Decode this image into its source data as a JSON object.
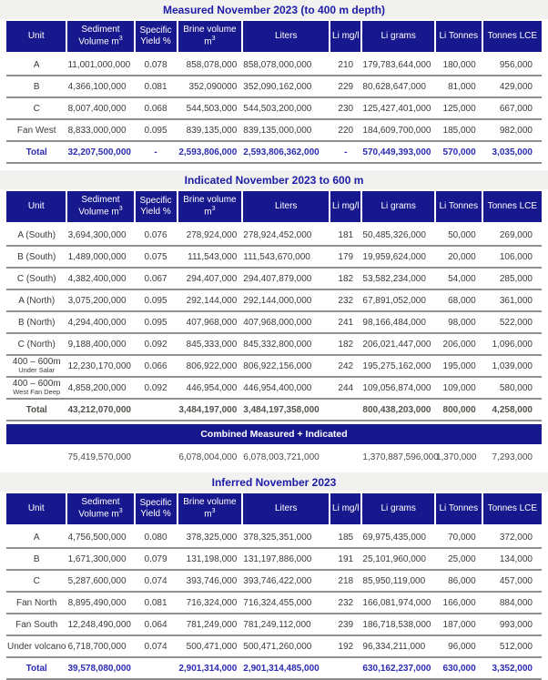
{
  "colors": {
    "header_navy": "#18188E",
    "title_band_bg": "#F1F1EF",
    "title_text": "#1C1CA6",
    "total_blue_text": "#2B2BB2",
    "total_gray_text": "#55524C",
    "data_text": "#3A3A3A",
    "row_divider": "#8F8F8F"
  },
  "column_headers": {
    "unit": "Unit",
    "sediment_line1": "Sediment",
    "sediment_line2": "Volume m",
    "sediment_sup": "3",
    "specific_line1": "Specific",
    "specific_line2": "Yield %",
    "brine_line1": "Brine volume",
    "brine_line2": "m",
    "brine_sup": "3",
    "liters": "Liters",
    "li_mgl": "Li mg/l",
    "li_grams": "Li grams",
    "li_tonnes": "Li Tonnes",
    "tonnes_lce": "Tonnes LCE"
  },
  "tables": [
    {
      "id": "measured",
      "title": "Measured November 2023 (to 400 m depth)",
      "rows": [
        {
          "style": "data",
          "cells": [
            "A",
            "11,001,000,000",
            "0.078",
            "858,078,000",
            "858,078,000,000",
            "210",
            "179,783,644,000",
            "180,000",
            "956,000"
          ]
        },
        {
          "style": "data",
          "cells": [
            "B",
            "4,366,100,000",
            "0.081",
            "352,090000",
            "352,090,162,000",
            "229",
            "80,628,647,000",
            "81,000",
            "429,000"
          ]
        },
        {
          "style": "data",
          "cells": [
            "C",
            "8,007,400,000",
            "0.068",
            "544,503,000",
            "544,503,200,000",
            "230",
            "125,427,401,000",
            "125,000",
            "667,000"
          ]
        },
        {
          "style": "data",
          "cells": [
            "Fan West",
            "8,833,000,000",
            "0.095",
            "839,135,000",
            "839,135,000,000",
            "220",
            "184,609,700,000",
            "185,000",
            "982,000"
          ]
        },
        {
          "style": "total-blue",
          "cells": [
            "Total",
            "32,207,500,000",
            "-",
            "2,593,806,000",
            "2,593,806,362,000",
            "-",
            "570,449,393,000",
            "570,000",
            "3,035,000"
          ]
        }
      ]
    },
    {
      "id": "indicated",
      "title": "Indicated November 2023 to 600 m",
      "rows": [
        {
          "style": "data",
          "cells": [
            "A (South)",
            "3,694,300,000",
            "0.076",
            "278,924,000",
            "278,924,452,000",
            "181",
            "50,485,326,000",
            "50,000",
            "269,000"
          ]
        },
        {
          "style": "data",
          "cells": [
            "B (South)",
            "1,489,000,000",
            "0.075",
            "111,543,000",
            "111,543,670,000",
            "179",
            "19,959,624,000",
            "20,000",
            "106,000"
          ]
        },
        {
          "style": "data",
          "cells": [
            "C (South)",
            "4,382,400,000",
            "0.067",
            "294,407,000",
            "294,407,879,000",
            "182",
            "53,582,234,000",
            "54,000",
            "285,000"
          ]
        },
        {
          "style": "data",
          "cells": [
            "A (North)",
            "3,075,200,000",
            "0.095",
            "292,144,000",
            "292,144,000,000",
            "232",
            "67,891,052,000",
            "68,000",
            "361,000"
          ]
        },
        {
          "style": "data",
          "cells": [
            "B (North)",
            "4,294,400,000",
            "0.095",
            "407,968,000",
            "407,968,000,000",
            "241",
            "98,166,484,000",
            "98,000",
            "522,000"
          ]
        },
        {
          "style": "data",
          "cells": [
            "C (North)",
            "9,188,400,000",
            "0.092",
            "845,333,000",
            "845,332,800,000",
            "182",
            "206,021,447,000",
            "206,000",
            "1,096,000"
          ]
        },
        {
          "style": "data",
          "cells": [
            {
              "text": "400 – 600m",
              "sub": "Under Salar"
            },
            "12,230,170,000",
            "0.066",
            "806,922,000",
            "806,922,156,000",
            "242",
            "195,275,162,000",
            "195,000",
            "1,039,000"
          ]
        },
        {
          "style": "data",
          "cells": [
            {
              "text": "400 – 600m",
              "sub": "West Fan Deep"
            },
            "4,858,200,000",
            "0.092",
            "446,954,000",
            "446,954,400,000",
            "244",
            "109,056,874,000",
            "109,000",
            "580,000"
          ]
        },
        {
          "style": "total-gray",
          "cells": [
            "Total",
            "43,212,070,000",
            "",
            "3,484,197,000",
            "3,484,197,358,000",
            "",
            "800,438,203,000",
            "800,000",
            "4,258,000"
          ]
        }
      ]
    },
    {
      "id": "combined",
      "band": "Combined Measured + Indicated",
      "rows": [
        {
          "style": "combined",
          "cells": [
            "",
            "75,419,570,000",
            "",
            "6,078,004,000",
            "6,078,003,721,000",
            "",
            "1,370,887,596,000",
            "1,370,000",
            "7,293,000"
          ]
        }
      ]
    },
    {
      "id": "inferred",
      "title": "Inferred November 2023",
      "rows": [
        {
          "style": "data",
          "cells": [
            "A",
            "4,756,500,000",
            "0.080",
            "378,325,000",
            "378,325,351,000",
            "185",
            "69,975,435,000",
            "70,000",
            "372,000"
          ]
        },
        {
          "style": "data",
          "cells": [
            "B",
            "1,671,300,000",
            "0.079",
            "131,198,000",
            "131,197,886,000",
            "191",
            "25,101,960,000",
            "25,000",
            "134,000"
          ]
        },
        {
          "style": "data",
          "cells": [
            "C",
            "5,287,600,000",
            "0.074",
            "393,746,000",
            "393,746,422,000",
            "218",
            "85,950,119,000",
            "86,000",
            "457,000"
          ]
        },
        {
          "style": "data",
          "cells": [
            "Fan North",
            "8,895,490,000",
            "0.081",
            "716,324,000",
            "716,324,455,000",
            "232",
            "166,081,974,000",
            "166,000",
            "884,000"
          ]
        },
        {
          "style": "data",
          "cells": [
            "Fan South",
            "12,248,490,000",
            "0.064",
            "781,249,000",
            "781,249,112,000",
            "239",
            "186,718,538,000",
            "187,000",
            "993,000"
          ]
        },
        {
          "style": "data",
          "cells": [
            "Under volcano",
            "6,718,700,000",
            "0.074",
            "500,471,000",
            "500,471,260,000",
            "192",
            "96,334,211,000",
            "96,000",
            "512,000"
          ]
        },
        {
          "style": "total-blue",
          "cells": [
            "Total",
            "39,578,080,000",
            "",
            "2,901,314,000",
            "2,901,314,485,000",
            "",
            "630,162,237,000",
            "630,000",
            "3,352,000"
          ]
        }
      ]
    }
  ]
}
